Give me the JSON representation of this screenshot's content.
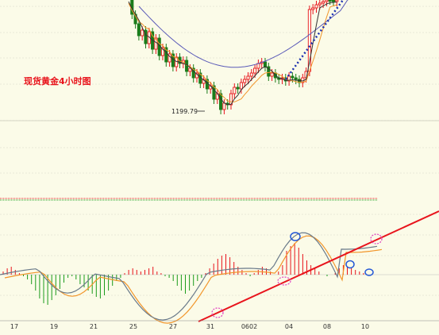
{
  "chart_data": {
    "type": "candlestick",
    "title": "现货黄金4小时图",
    "low_annotation": "1199.79",
    "x_tick_labels": [
      "17",
      "19",
      "21",
      "25",
      "27",
      "31",
      "0602",
      "04",
      "08",
      "10"
    ],
    "colors": {
      "background": "#fbfbe8",
      "up_candle": "#e8141c",
      "down_candle": "#1b7c1b",
      "ma_fast": "#333333",
      "ma_mid": "#f2962b",
      "ma_slow": "#5a5ab8",
      "trendline": "#e8141c",
      "dotted_trend": "#1a2fb0",
      "macd_line": "#6a7a8a",
      "signal_line": "#f2962b",
      "hist_pos": "#e8141c",
      "hist_neg": "#1b9c1b",
      "marker_blue": "#2458d6",
      "marker_pink": "#e040c0",
      "grid": "#d8d8c8"
    }
  }
}
